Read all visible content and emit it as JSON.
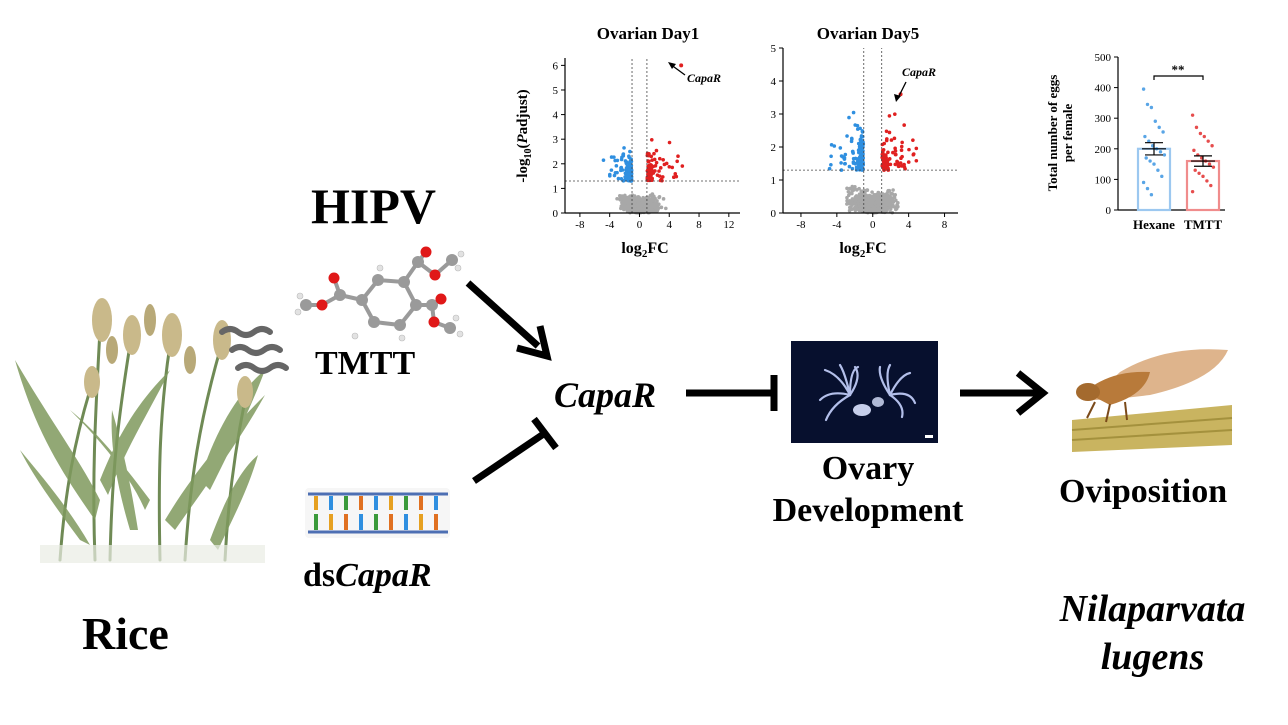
{
  "labels": {
    "hipv": "HIPV",
    "tmtt": "TMTT",
    "ds_prefix": "ds",
    "ds_gene": "CapaR",
    "rice": "Rice",
    "capar": "CapaR",
    "ovary_line1": "Ovary",
    "ovary_line2": "Development",
    "oviposition": "Oviposition",
    "species_line1": "Nilaparvata",
    "species_line2": "lugens"
  },
  "colors": {
    "down": "#2f8fe0",
    "up": "#e02020",
    "ns": "#a8a8a8",
    "hexane_bar": "#9cc8f0",
    "tmtt_bar": "#f08c8c"
  },
  "chart_data": [
    {
      "type": "scatter",
      "title": "Ovarian Day1",
      "xlabel": "log2FC",
      "ylabel": "-log10(Padjust)",
      "x_ticks": [
        "-8",
        "-4",
        "0",
        "4",
        "8",
        "12"
      ],
      "y_ticks": [
        "0",
        "1",
        "2",
        "3",
        "4",
        "5",
        "6"
      ],
      "xlim": [
        -10,
        13.5
      ],
      "ylim": [
        0,
        6.3
      ],
      "thresholds": {
        "fc": [
          -1,
          1
        ],
        "padj": 1.3
      },
      "annotation": "CapaR",
      "highlight_point": [
        5.6,
        6.0
      ],
      "series": [
        {
          "name": "",
          "color_key": "down"
        },
        {
          "name": "",
          "color_key": "up"
        },
        {
          "name": "",
          "color_key": "ns"
        }
      ]
    },
    {
      "type": "scatter",
      "title": "Ovarian Day5",
      "xlabel": "log2FC",
      "ylabel": "",
      "x_ticks": [
        "-8",
        "-4",
        "0",
        "4",
        "8"
      ],
      "y_ticks": [
        "0",
        "1",
        "2",
        "3",
        "4",
        "5"
      ],
      "xlim": [
        -10,
        9.5
      ],
      "ylim": [
        0,
        5
      ],
      "thresholds": {
        "fc": [
          -1,
          1
        ],
        "padj": 1.3
      },
      "annotation": "CapaR",
      "highlight_point": [
        3.1,
        3.6
      ],
      "series": [
        {
          "name": "",
          "color_key": "down"
        },
        {
          "name": "",
          "color_key": "up"
        },
        {
          "name": "",
          "color_key": "ns"
        }
      ]
    },
    {
      "type": "bar",
      "categories": [
        "Hexane",
        "TMTT"
      ],
      "values": [
        200,
        160
      ],
      "errors": [
        20,
        17
      ],
      "ylabel": "Total number of eggs per female",
      "ylabel_line1": "Total number of eggs",
      "ylabel_line2": "per female",
      "y_ticks": [
        "0",
        "100",
        "200",
        "300",
        "400",
        "500"
      ],
      "ylim": [
        0,
        500
      ],
      "significance": "**",
      "points": {
        "Hexane": [
          395,
          345,
          335,
          290,
          270,
          255,
          240,
          225,
          210,
          200,
          190,
          180,
          170,
          160,
          150,
          130,
          110,
          90,
          70,
          50
        ],
        "TMTT": [
          310,
          270,
          250,
          240,
          225,
          210,
          195,
          180,
          170,
          160,
          150,
          140,
          130,
          120,
          110,
          95,
          80,
          60
        ]
      }
    }
  ]
}
